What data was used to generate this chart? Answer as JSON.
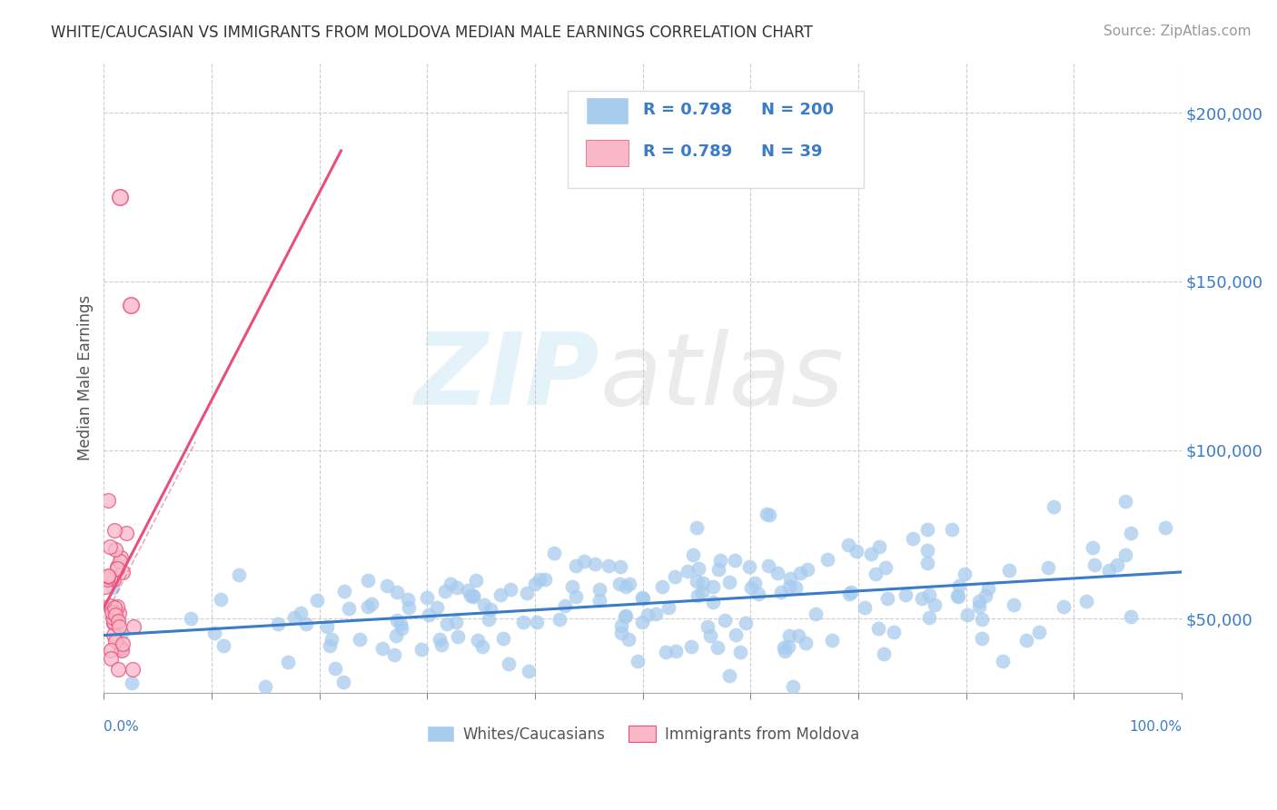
{
  "title": "WHITE/CAUCASIAN VS IMMIGRANTS FROM MOLDOVA MEDIAN MALE EARNINGS CORRELATION CHART",
  "source": "Source: ZipAtlas.com",
  "ylabel": "Median Male Earnings",
  "blue_R": 0.798,
  "blue_N": 200,
  "pink_R": 0.789,
  "pink_N": 39,
  "blue_color": "#a8ccee",
  "pink_color": "#f9b8c8",
  "blue_line_color": "#3a7cc8",
  "pink_line_color": "#e8507a",
  "xmin": 0.0,
  "xmax": 1.0,
  "ymin": 28000,
  "ymax": 215000,
  "yticks": [
    50000,
    100000,
    150000,
    200000
  ],
  "ytick_labels": [
    "$50,000",
    "$100,000",
    "$150,000",
    "$200,000"
  ],
  "legend_label_blue": "Whites/Caucasians",
  "legend_label_pink": "Immigrants from Moldova",
  "title_color": "#333333",
  "source_color": "#999999",
  "axis_label_color": "#555555",
  "tick_color": "#888888",
  "grid_color": "#cccccc",
  "blue_seed": 42,
  "pink_seed": 99
}
